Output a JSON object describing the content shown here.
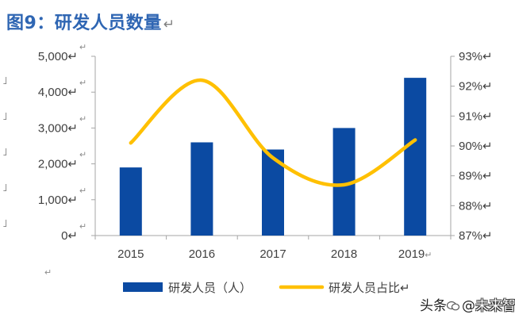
{
  "title": "图9：研发人员数量",
  "title_mark": "↵",
  "paragraph_mark": "↵",
  "left_marks": [
    "˩",
    "˩",
    "˩",
    "˩",
    "˩"
  ],
  "watermark": {
    "prefix": "头条",
    "at": "@",
    "source": "未来智库"
  },
  "colors": {
    "bar": "#0b4aa2",
    "line": "#ffc000",
    "axis": "#a6a6a6",
    "text": "#404040",
    "title": "#2f66b3"
  },
  "chart_data": {
    "type": "bar+line",
    "categories": [
      "2015",
      "2016",
      "2017",
      "2018",
      "2019"
    ],
    "category_label_suffixes": [
      "",
      "",
      "",
      "",
      "↵"
    ],
    "series": [
      {
        "name": "研发人员（人）",
        "legend_label": "研发人员（人）",
        "type": "bar",
        "axis": "left",
        "values": [
          1900,
          2600,
          2400,
          3000,
          4400
        ]
      },
      {
        "name": "研发人员占比",
        "legend_label": "研发人员占比↵",
        "type": "line",
        "axis": "right",
        "smooth": true,
        "values": [
          90.1,
          92.2,
          89.6,
          88.7,
          90.2
        ]
      }
    ],
    "y_left": {
      "min": 0,
      "max": 5000,
      "ticks": [
        0,
        1000,
        2000,
        3000,
        4000,
        5000
      ],
      "tick_labels": [
        "0↵",
        "1,000↵",
        "2,000↵",
        "3,000↵",
        "4,000↵",
        "5,000↵"
      ]
    },
    "y_right": {
      "min": 87,
      "max": 93,
      "ticks": [
        87,
        88,
        89,
        90,
        91,
        92,
        93
      ],
      "tick_labels": [
        "87%↵",
        "88%↵",
        "89%↵",
        "90%↵",
        "91%↵",
        "92%↵",
        "93%↵"
      ]
    },
    "grid": false,
    "legend_position": "bottom"
  }
}
